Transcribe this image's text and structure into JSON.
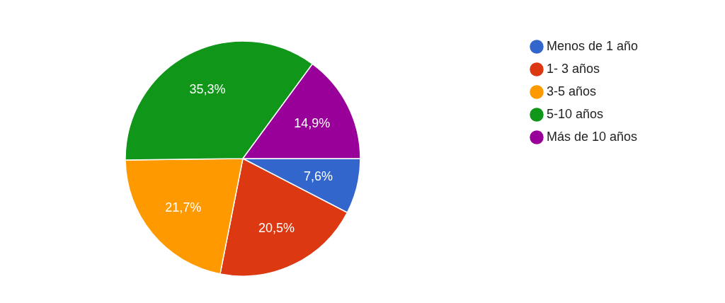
{
  "chart_data": {
    "type": "pie",
    "categories": [
      "Menos de 1 año",
      "1- 3 años",
      "3-5 años",
      "5-10 años",
      "Más de 10 años"
    ],
    "values": [
      7.6,
      20.5,
      21.7,
      35.3,
      14.9
    ],
    "value_labels": [
      "7,6%",
      "20,5%",
      "21,7%",
      "35,3%",
      "14,9%"
    ],
    "colors": [
      "#3366cc",
      "#dc3912",
      "#ff9900",
      "#109618",
      "#990099"
    ],
    "legend": "right"
  }
}
